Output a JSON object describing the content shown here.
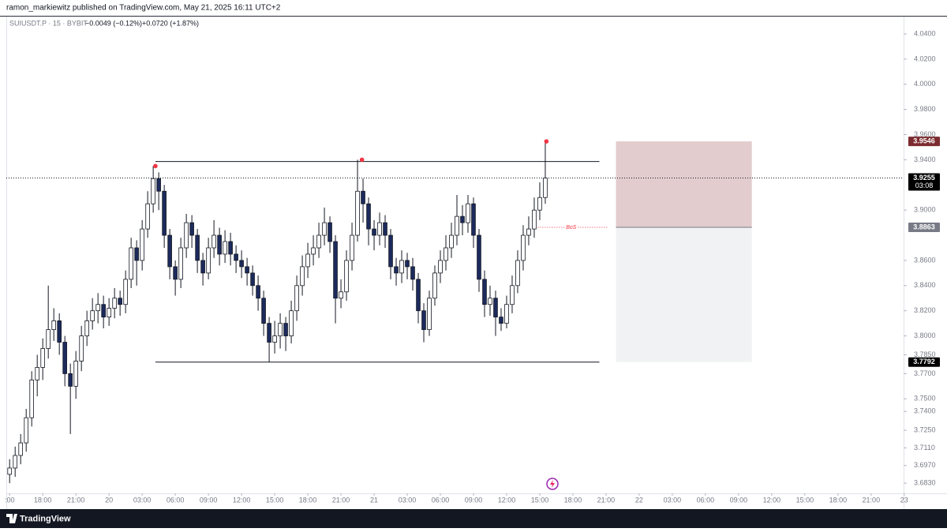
{
  "header": {
    "text": "ramon_markiewitz published on TradingView.com, May 21, 2025 16:11 UTC+2"
  },
  "footer": {
    "brand": "TradingView"
  },
  "chart_data": {
    "type": "candlestick",
    "symbol": "SUIUSDT.P · 15 · BYBIT",
    "change_labels": [
      "−0.0049 (−0.12%)",
      "+0.0720 (+1.87%)"
    ],
    "x": [
      0,
      0.5,
      1,
      1.5,
      2,
      2.5,
      3,
      3.5,
      4,
      4.5,
      5,
      5.5,
      6,
      6.5,
      7,
      7.5,
      8,
      8.5,
      9,
      9.5,
      10,
      10.5,
      11,
      11.5,
      12,
      12.5,
      13,
      13.5,
      14,
      14.5,
      15,
      15.5,
      16,
      16.5,
      17,
      17.5,
      18,
      18.5,
      19,
      19.5,
      20,
      20.5,
      21,
      21.5,
      22,
      22.5,
      23,
      23.5,
      24,
      24.5,
      25,
      25.5,
      26,
      26.5,
      27,
      27.5,
      28,
      28.5,
      29,
      29.5,
      30,
      30.5,
      31,
      31.5,
      32,
      32.5,
      33,
      33.5,
      34,
      34.5,
      35,
      35.5,
      36,
      36.5,
      37,
      37.5,
      38,
      38.5,
      39,
      39.5,
      40,
      40.5,
      41,
      41.5,
      42,
      42.5,
      43,
      43.5,
      44,
      44.5,
      45,
      45.5,
      46,
      46.5,
      47,
      47.5,
      48,
      48.5
    ],
    "ohlc": [
      [
        3.69,
        3.702,
        3.683,
        3.695
      ],
      [
        3.695,
        3.712,
        3.688,
        3.705
      ],
      [
        3.705,
        3.722,
        3.698,
        3.715
      ],
      [
        3.715,
        3.742,
        3.708,
        3.735
      ],
      [
        3.735,
        3.772,
        3.728,
        3.765
      ],
      [
        3.765,
        3.785,
        3.752,
        3.775
      ],
      [
        3.775,
        3.798,
        3.765,
        3.79
      ],
      [
        3.79,
        3.84,
        3.782,
        3.805
      ],
      [
        3.805,
        3.822,
        3.796,
        3.812
      ],
      [
        3.812,
        3.818,
        3.785,
        3.795
      ],
      [
        3.795,
        3.8,
        3.76,
        3.77
      ],
      [
        3.77,
        3.778,
        3.722,
        3.76
      ],
      [
        3.76,
        3.788,
        3.75,
        3.78
      ],
      [
        3.78,
        3.808,
        3.772,
        3.8
      ],
      [
        3.8,
        3.82,
        3.792,
        3.812
      ],
      [
        3.812,
        3.83,
        3.805,
        3.82
      ],
      [
        3.82,
        3.834,
        3.81,
        3.825
      ],
      [
        3.825,
        3.832,
        3.806,
        3.815
      ],
      [
        3.815,
        3.83,
        3.808,
        3.822
      ],
      [
        3.822,
        3.838,
        3.814,
        3.83
      ],
      [
        3.83,
        3.836,
        3.816,
        3.825
      ],
      [
        3.825,
        3.852,
        3.818,
        3.845
      ],
      [
        3.845,
        3.878,
        3.838,
        3.87
      ],
      [
        3.87,
        3.876,
        3.84,
        3.86
      ],
      [
        3.86,
        3.892,
        3.852,
        3.885
      ],
      [
        3.885,
        3.915,
        3.878,
        3.905
      ],
      [
        3.905,
        3.935,
        3.898,
        3.925
      ],
      [
        3.925,
        3.93,
        3.9,
        3.915
      ],
      [
        3.915,
        3.92,
        3.87,
        3.88
      ],
      [
        3.88,
        3.885,
        3.845,
        3.855
      ],
      [
        3.855,
        3.86,
        3.832,
        3.845
      ],
      [
        3.845,
        3.878,
        3.838,
        3.87
      ],
      [
        3.87,
        3.897,
        3.862,
        3.89
      ],
      [
        3.89,
        3.896,
        3.87,
        3.88
      ],
      [
        3.88,
        3.885,
        3.85,
        3.86
      ],
      [
        3.86,
        3.866,
        3.84,
        3.85
      ],
      [
        3.85,
        3.878,
        3.845,
        3.87
      ],
      [
        3.87,
        3.892,
        3.862,
        3.88
      ],
      [
        3.88,
        3.886,
        3.856,
        3.865
      ],
      [
        3.865,
        3.884,
        3.858,
        3.875
      ],
      [
        3.875,
        3.882,
        3.856,
        3.865
      ],
      [
        3.865,
        3.872,
        3.85,
        3.86
      ],
      [
        3.86,
        3.868,
        3.846,
        3.855
      ],
      [
        3.855,
        3.862,
        3.84,
        3.85
      ],
      [
        3.85,
        3.856,
        3.832,
        3.84
      ],
      [
        3.84,
        3.848,
        3.82,
        3.83
      ],
      [
        3.83,
        3.836,
        3.8,
        3.81
      ],
      [
        3.81,
        3.815,
        3.779,
        3.795
      ],
      [
        3.795,
        3.812,
        3.786,
        3.8
      ],
      [
        3.8,
        3.818,
        3.79,
        3.81
      ],
      [
        3.81,
        3.815,
        3.788,
        3.8
      ],
      [
        3.8,
        3.828,
        3.794,
        3.82
      ],
      [
        3.82,
        3.848,
        3.812,
        3.84
      ],
      [
        3.84,
        3.864,
        3.832,
        3.855
      ],
      [
        3.855,
        3.874,
        3.846,
        3.865
      ],
      [
        3.865,
        3.88,
        3.856,
        3.87
      ],
      [
        3.87,
        3.89,
        3.862,
        3.88
      ],
      [
        3.88,
        3.902,
        3.872,
        3.89
      ],
      [
        3.89,
        3.895,
        3.866,
        3.875
      ],
      [
        3.875,
        3.88,
        3.81,
        3.83
      ],
      [
        3.83,
        3.845,
        3.822,
        3.835
      ],
      [
        3.835,
        3.868,
        3.828,
        3.86
      ],
      [
        3.86,
        3.89,
        3.852,
        3.88
      ],
      [
        3.88,
        3.94,
        3.875,
        3.915
      ],
      [
        3.915,
        3.925,
        3.89,
        3.905
      ],
      [
        3.905,
        3.91,
        3.872,
        3.885
      ],
      [
        3.885,
        3.892,
        3.868,
        3.88
      ],
      [
        3.88,
        3.898,
        3.872,
        3.89
      ],
      [
        3.89,
        3.896,
        3.87,
        3.88
      ],
      [
        3.88,
        3.885,
        3.845,
        3.855
      ],
      [
        3.855,
        3.862,
        3.84,
        3.85
      ],
      [
        3.85,
        3.868,
        3.842,
        3.86
      ],
      [
        3.86,
        3.866,
        3.845,
        3.855
      ],
      [
        3.855,
        3.862,
        3.836,
        3.845
      ],
      [
        3.845,
        3.85,
        3.81,
        3.82
      ],
      [
        3.82,
        3.826,
        3.795,
        3.805
      ],
      [
        3.805,
        3.836,
        3.8,
        3.83
      ],
      [
        3.83,
        3.856,
        3.824,
        3.85
      ],
      [
        3.85,
        3.868,
        3.842,
        3.86
      ],
      [
        3.86,
        3.88,
        3.852,
        3.87
      ],
      [
        3.87,
        3.89,
        3.862,
        3.88
      ],
      [
        3.88,
        3.912,
        3.872,
        3.895
      ],
      [
        3.895,
        3.904,
        3.88,
        3.89
      ],
      [
        3.89,
        3.912,
        3.882,
        3.905
      ],
      [
        3.905,
        3.91,
        3.87,
        3.88
      ],
      [
        3.88,
        3.885,
        3.835,
        3.845
      ],
      [
        3.845,
        3.852,
        3.815,
        3.825
      ],
      [
        3.825,
        3.84,
        3.816,
        3.83
      ],
      [
        3.83,
        3.836,
        3.8,
        3.815
      ],
      [
        3.815,
        3.822,
        3.804,
        3.81
      ],
      [
        3.81,
        3.832,
        3.806,
        3.825
      ],
      [
        3.825,
        3.848,
        3.818,
        3.84
      ],
      [
        3.84,
        3.868,
        3.834,
        3.86
      ],
      [
        3.86,
        3.888,
        3.852,
        3.88
      ],
      [
        3.88,
        3.895,
        3.872,
        3.885
      ],
      [
        3.885,
        3.91,
        3.878,
        3.9
      ],
      [
        3.9,
        3.922,
        3.892,
        3.91
      ],
      [
        3.91,
        3.9546,
        3.905,
        3.9255
      ]
    ],
    "up_color": "#ffffff",
    "down_color": "#1c2a5c",
    "outline_color": "#131722",
    "xlim": [
      -0.3,
      81.3
    ],
    "xticks": [
      {
        "value": 0,
        "label": ":00"
      },
      {
        "value": 3,
        "label": "18:00"
      },
      {
        "value": 6,
        "label": "21:00"
      },
      {
        "value": 9,
        "label": "20"
      },
      {
        "value": 12,
        "label": "03:00"
      },
      {
        "value": 15,
        "label": "06:00"
      },
      {
        "value": 18,
        "label": "09:00"
      },
      {
        "value": 21,
        "label": "12:00"
      },
      {
        "value": 24,
        "label": "15:00"
      },
      {
        "value": 27,
        "label": "18:00"
      },
      {
        "value": 30,
        "label": "21:00"
      },
      {
        "value": 33,
        "label": "21"
      },
      {
        "value": 36,
        "label": "03:00"
      },
      {
        "value": 39,
        "label": "06:00"
      },
      {
        "value": 42,
        "label": "09:00"
      },
      {
        "value": 45,
        "label": "12:00"
      },
      {
        "value": 48,
        "label": "15:00"
      },
      {
        "value": 51,
        "label": "18:00"
      },
      {
        "value": 54,
        "label": "21:00"
      },
      {
        "value": 57,
        "label": "22"
      },
      {
        "value": 60,
        "label": "03:00"
      },
      {
        "value": 63,
        "label": "06:00"
      },
      {
        "value": 66,
        "label": "09:00"
      },
      {
        "value": 69,
        "label": "12:00"
      },
      {
        "value": 72,
        "label": "15:00"
      },
      {
        "value": 75,
        "label": "18:00"
      },
      {
        "value": 78,
        "label": "21:00"
      },
      {
        "value": 81,
        "label": "23"
      }
    ],
    "ylim": [
      3.6749,
      4.0538
    ],
    "yticks": [
      {
        "value": 4.04,
        "label": "4.0400"
      },
      {
        "value": 4.02,
        "label": "4.0200"
      },
      {
        "value": 4.0,
        "label": "4.0000"
      },
      {
        "value": 3.98,
        "label": "3.9800"
      },
      {
        "value": 3.96,
        "label": "3.9600"
      },
      {
        "value": 3.94,
        "label": "3.9400"
      },
      {
        "value": 3.9,
        "label": "3.9000"
      },
      {
        "value": 3.86,
        "label": "3.8600"
      },
      {
        "value": 3.84,
        "label": "3.8400"
      },
      {
        "value": 3.82,
        "label": "3.8200"
      },
      {
        "value": 3.8,
        "label": "3.8000"
      },
      {
        "value": 3.785,
        "label": "3.7850"
      },
      {
        "value": 3.77,
        "label": "3.7700"
      },
      {
        "value": 3.75,
        "label": "3.7500"
      },
      {
        "value": 3.74,
        "label": "3.7400"
      },
      {
        "value": 3.725,
        "label": "3.7250"
      },
      {
        "value": 3.711,
        "label": "3.7110"
      },
      {
        "value": 3.697,
        "label": "3.6970"
      },
      {
        "value": 3.683,
        "label": "3.6830"
      }
    ],
    "grid": false,
    "last_price": 3.9255,
    "price_labels": [
      {
        "value": 3.9546,
        "label": "3.9546",
        "color": "#7b2c30"
      },
      {
        "value": 3.9255,
        "label": "3.9255",
        "color": "#000000",
        "countdown": "03:08"
      },
      {
        "value": 3.8863,
        "label": "3.8863",
        "color": "#787b86"
      },
      {
        "value": 3.7792,
        "label": "3.7792",
        "color": "#000000"
      }
    ],
    "levels": [
      {
        "value": 3.9386,
        "x": [
          13.2,
          53.4
        ]
      },
      {
        "value": 3.7792,
        "x": [
          13.2,
          53.4
        ]
      }
    ],
    "pivots": [
      {
        "x": 13.2,
        "value": 3.935
      },
      {
        "x": 31.9,
        "value": 3.94
      },
      {
        "x": 48.6,
        "value": 3.9546
      }
    ],
    "pivot_color": "#f23645",
    "bos": {
      "label": "BoS",
      "value": 3.8863,
      "x": [
        47.6,
        54.1
      ]
    },
    "position": {
      "x": [
        54.9,
        67.2
      ],
      "stop": 3.9546,
      "entry": 3.8863,
      "target": 3.7792
    }
  }
}
